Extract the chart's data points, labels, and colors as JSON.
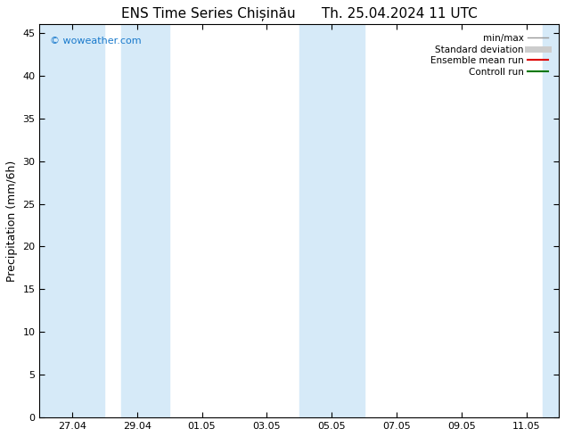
{
  "title": "ENS Time Series Chișinău      Th. 25.04.2024 11 UTC",
  "ylabel": "Precipitation (mm/6h)",
  "watermark": "© woweather.com",
  "ylim": [
    0,
    46
  ],
  "yticks": [
    0,
    5,
    10,
    15,
    20,
    25,
    30,
    35,
    40,
    45
  ],
  "xtick_labels": [
    "27.04",
    "29.04",
    "01.05",
    "03.05",
    "05.05",
    "07.05",
    "09.05",
    "11.05"
  ],
  "xtick_positions": [
    1.0,
    3.0,
    5.0,
    7.0,
    9.0,
    11.0,
    13.0,
    15.0
  ],
  "xlim": [
    0.0,
    16.0
  ],
  "shaded_bands": [
    {
      "x_start": 0.0,
      "x_end": 2.0
    },
    {
      "x_start": 2.5,
      "x_end": 4.0
    },
    {
      "x_start": 8.0,
      "x_end": 10.0
    },
    {
      "x_start": 15.5,
      "x_end": 16.0
    }
  ],
  "bg_color": "#ffffff",
  "band_color": "#d6eaf8",
  "legend_items": [
    {
      "label": "min/max",
      "color": "#999999",
      "lw": 1.0
    },
    {
      "label": "Standard deviation",
      "color": "#cccccc",
      "lw": 5
    },
    {
      "label": "Ensemble mean run",
      "color": "#dd0000",
      "lw": 1.5
    },
    {
      "label": "Controll run",
      "color": "#007700",
      "lw": 1.5
    }
  ],
  "title_fontsize": 11,
  "ylabel_fontsize": 9,
  "tick_fontsize": 8,
  "watermark_color": "#1a7acc",
  "watermark_fontsize": 8,
  "legend_fontsize": 7.5
}
